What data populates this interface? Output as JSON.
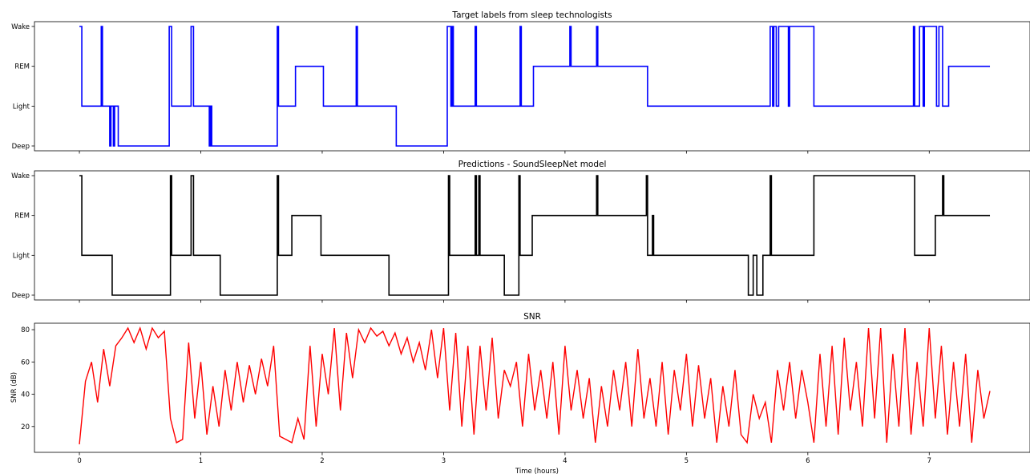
{
  "xlabel": "Time (hours)",
  "x_ticks": [
    0,
    1,
    2,
    3,
    4,
    5,
    6,
    7
  ],
  "chart_data": [
    {
      "type": "line",
      "title": "Target labels from sleep technologists",
      "color": "#0000ff",
      "xlabel": "",
      "ylabel": "",
      "xlim": [
        -0.37,
        7.83
      ],
      "y_categories": [
        "Deep",
        "Light",
        "REM",
        "Wake"
      ],
      "series": [
        {
          "x": [
            0,
            0.02,
            0.02,
            0.18,
            0.18,
            0.19,
            0.19,
            0.25,
            0.25,
            0.26,
            0.26,
            0.28,
            0.28,
            0.29,
            0.29,
            0.32,
            0.32,
            0.33,
            0.33,
            0.74,
            0.74,
            0.76,
            0.76,
            0.92,
            0.92,
            0.94,
            0.94,
            1.07,
            1.07,
            1.08,
            1.08,
            1.09,
            1.09,
            1.63,
            1.63,
            1.64,
            1.64,
            1.78,
            1.78,
            2.01,
            2.01,
            2.28,
            2.28,
            2.29,
            2.29,
            2.61,
            2.61,
            3.03,
            3.03,
            3.06,
            3.06,
            3.07,
            3.07,
            3.08,
            3.08,
            3.26,
            3.26,
            3.27,
            3.27,
            3.63,
            3.63,
            3.64,
            3.64,
            3.74,
            3.74,
            4.04,
            4.04,
            4.05,
            4.05,
            4.26,
            4.26,
            4.27,
            4.27,
            4.68,
            4.68,
            5.69,
            5.69,
            5.71,
            5.71,
            5.72,
            5.72,
            5.74,
            5.74,
            5.76,
            5.76,
            5.84,
            5.84,
            5.85,
            5.85,
            6.05,
            6.05,
            6.87,
            6.87,
            6.88,
            6.88,
            6.92,
            6.92,
            6.95,
            6.95,
            6.96,
            6.96,
            7.06,
            7.06,
            7.08,
            7.08,
            7.11,
            7.11,
            7.16,
            7.16,
            7.5
          ],
          "y": [
            "Wake",
            "Wake",
            "Light",
            "Light",
            "Wake",
            "Wake",
            "Light",
            "Light",
            "Deep",
            "Deep",
            "Light",
            "Light",
            "Deep",
            "Deep",
            "Light",
            "Light",
            "Deep",
            "Deep",
            "Deep",
            "Deep",
            "Wake",
            "Wake",
            "Light",
            "Light",
            "Wake",
            "Wake",
            "Light",
            "Light",
            "Deep",
            "Deep",
            "Light",
            "Light",
            "Deep",
            "Deep",
            "Wake",
            "Wake",
            "Light",
            "Light",
            "REM",
            "REM",
            "Light",
            "Light",
            "Wake",
            "Wake",
            "Light",
            "Light",
            "Deep",
            "Deep",
            "Wake",
            "Wake",
            "Light",
            "Light",
            "Wake",
            "Wake",
            "Light",
            "Light",
            "Wake",
            "Wake",
            "Light",
            "Light",
            "Wake",
            "Wake",
            "Light",
            "Light",
            "REM",
            "REM",
            "Wake",
            "Wake",
            "REM",
            "REM",
            "Wake",
            "Wake",
            "REM",
            "REM",
            "Light",
            "Light",
            "Wake",
            "Wake",
            "Light",
            "Light",
            "Wake",
            "Wake",
            "Light",
            "Light",
            "Wake",
            "Wake",
            "Light",
            "Light",
            "Wake",
            "Wake",
            "Light",
            "Light",
            "Wake",
            "Wake",
            "Light",
            "Light",
            "Wake",
            "Wake",
            "Light",
            "Light",
            "Wake",
            "Wake",
            "Light",
            "Light",
            "Wake",
            "Wake",
            "Light",
            "Light",
            "REM",
            "REM"
          ]
        }
      ]
    },
    {
      "type": "line",
      "title": "Predictions - SoundSleepNet model",
      "color": "#000000",
      "xlabel": "",
      "ylabel": "",
      "xlim": [
        -0.37,
        7.83
      ],
      "y_categories": [
        "Deep",
        "Light",
        "REM",
        "Wake"
      ],
      "series": [
        {
          "x": [
            0,
            0.02,
            0.02,
            0.27,
            0.27,
            0.75,
            0.75,
            0.76,
            0.76,
            0.92,
            0.92,
            0.94,
            0.94,
            1.16,
            1.16,
            1.63,
            1.63,
            1.64,
            1.64,
            1.75,
            1.75,
            1.99,
            1.99,
            2.55,
            2.55,
            3.04,
            3.04,
            3.05,
            3.05,
            3.26,
            3.26,
            3.27,
            3.27,
            3.29,
            3.29,
            3.3,
            3.3,
            3.5,
            3.5,
            3.62,
            3.62,
            3.63,
            3.63,
            3.73,
            3.73,
            4.26,
            4.26,
            4.27,
            4.27,
            4.67,
            4.67,
            4.68,
            4.68,
            4.72,
            4.72,
            4.73,
            4.73,
            5.51,
            5.51,
            5.55,
            5.55,
            5.58,
            5.58,
            5.63,
            5.63,
            5.69,
            5.69,
            5.7,
            5.7,
            6.05,
            6.05,
            6.88,
            6.88,
            6.89,
            6.89,
            7.05,
            7.05,
            7.11,
            7.11,
            7.12,
            7.12,
            7.5
          ],
          "y": [
            "Wake",
            "Wake",
            "Light",
            "Light",
            "Deep",
            "Deep",
            "Wake",
            "Wake",
            "Light",
            "Light",
            "Wake",
            "Wake",
            "Light",
            "Light",
            "Deep",
            "Deep",
            "Wake",
            "Wake",
            "Light",
            "Light",
            "REM",
            "REM",
            "Light",
            "Light",
            "Deep",
            "Deep",
            "Wake",
            "Wake",
            "Light",
            "Light",
            "Wake",
            "Wake",
            "Light",
            "Light",
            "Wake",
            "Wake",
            "Light",
            "Light",
            "Deep",
            "Deep",
            "Wake",
            "Wake",
            "Light",
            "Light",
            "REM",
            "REM",
            "Wake",
            "Wake",
            "REM",
            "REM",
            "Wake",
            "Wake",
            "Light",
            "Light",
            "REM",
            "REM",
            "Light",
            "Light",
            "Deep",
            "Deep",
            "Light",
            "Light",
            "Deep",
            "Deep",
            "Light",
            "Light",
            "Wake",
            "Wake",
            "Light",
            "Light",
            "Wake",
            "Wake",
            "Light",
            "Light",
            "Light",
            "Light",
            "REM",
            "REM",
            "Wake",
            "Wake",
            "REM",
            "REM"
          ]
        }
      ]
    },
    {
      "type": "line",
      "title": "SNR",
      "color": "#ff0000",
      "xlabel": "Time (hours)",
      "ylabel": "SNR (dB)",
      "xlim": [
        -0.37,
        7.83
      ],
      "ylim": [
        4,
        84
      ],
      "y_ticks": [
        20,
        40,
        60,
        80
      ],
      "series": [
        {
          "x": [
            0,
            0.05,
            0.1,
            0.15,
            0.2,
            0.25,
            0.3,
            0.35,
            0.4,
            0.45,
            0.5,
            0.55,
            0.6,
            0.65,
            0.7,
            0.75,
            0.8,
            0.85,
            0.9,
            0.95,
            1.0,
            1.05,
            1.1,
            1.15,
            1.2,
            1.25,
            1.3,
            1.35,
            1.4,
            1.45,
            1.5,
            1.55,
            1.6,
            1.65,
            1.7,
            1.75,
            1.8,
            1.85,
            1.9,
            1.95,
            2.0,
            2.05,
            2.1,
            2.15,
            2.2,
            2.25,
            2.3,
            2.35,
            2.4,
            2.45,
            2.5,
            2.55,
            2.6,
            2.65,
            2.7,
            2.75,
            2.8,
            2.85,
            2.9,
            2.95,
            3.0,
            3.05,
            3.1,
            3.15,
            3.2,
            3.25,
            3.3,
            3.35,
            3.4,
            3.45,
            3.5,
            3.55,
            3.6,
            3.65,
            3.7,
            3.75,
            3.8,
            3.85,
            3.9,
            3.95,
            4.0,
            4.05,
            4.1,
            4.15,
            4.2,
            4.25,
            4.3,
            4.35,
            4.4,
            4.45,
            4.5,
            4.55,
            4.6,
            4.65,
            4.7,
            4.75,
            4.8,
            4.85,
            4.9,
            4.95,
            5.0,
            5.05,
            5.1,
            5.15,
            5.2,
            5.25,
            5.3,
            5.35,
            5.4,
            5.45,
            5.5,
            5.55,
            5.6,
            5.65,
            5.7,
            5.75,
            5.8,
            5.85,
            5.9,
            5.95,
            6.0,
            6.05,
            6.1,
            6.15,
            6.2,
            6.25,
            6.3,
            6.35,
            6.4,
            6.45,
            6.5,
            6.55,
            6.6,
            6.65,
            6.7,
            6.75,
            6.8,
            6.85,
            6.9,
            6.95,
            7.0,
            7.05,
            7.1,
            7.15,
            7.2,
            7.25,
            7.3,
            7.35,
            7.4,
            7.45,
            7.5
          ],
          "y": [
            9,
            48,
            60,
            35,
            68,
            45,
            70,
            75,
            81,
            72,
            81,
            68,
            81,
            75,
            79,
            25,
            10,
            12,
            72,
            25,
            60,
            15,
            45,
            20,
            55,
            30,
            60,
            35,
            58,
            40,
            62,
            45,
            70,
            14,
            12,
            10,
            25,
            12,
            70,
            20,
            65,
            40,
            81,
            30,
            78,
            50,
            80,
            72,
            81,
            76,
            79,
            70,
            78,
            65,
            75,
            60,
            72,
            55,
            80,
            50,
            81,
            30,
            78,
            20,
            70,
            15,
            70,
            30,
            75,
            25,
            55,
            45,
            60,
            20,
            65,
            30,
            55,
            25,
            60,
            15,
            70,
            30,
            55,
            25,
            50,
            10,
            45,
            20,
            55,
            30,
            60,
            20,
            68,
            25,
            50,
            20,
            60,
            15,
            55,
            30,
            65,
            20,
            58,
            25,
            50,
            10,
            45,
            20,
            55,
            15,
            10,
            40,
            25,
            35,
            10,
            55,
            30,
            60,
            25,
            55,
            35,
            10,
            65,
            20,
            70,
            15,
            75,
            30,
            60,
            20,
            81,
            25,
            81,
            10,
            65,
            20,
            81,
            15,
            60,
            20,
            81,
            25,
            70,
            15,
            60,
            20,
            65,
            10,
            55,
            25,
            42
          ]
        }
      ]
    }
  ]
}
